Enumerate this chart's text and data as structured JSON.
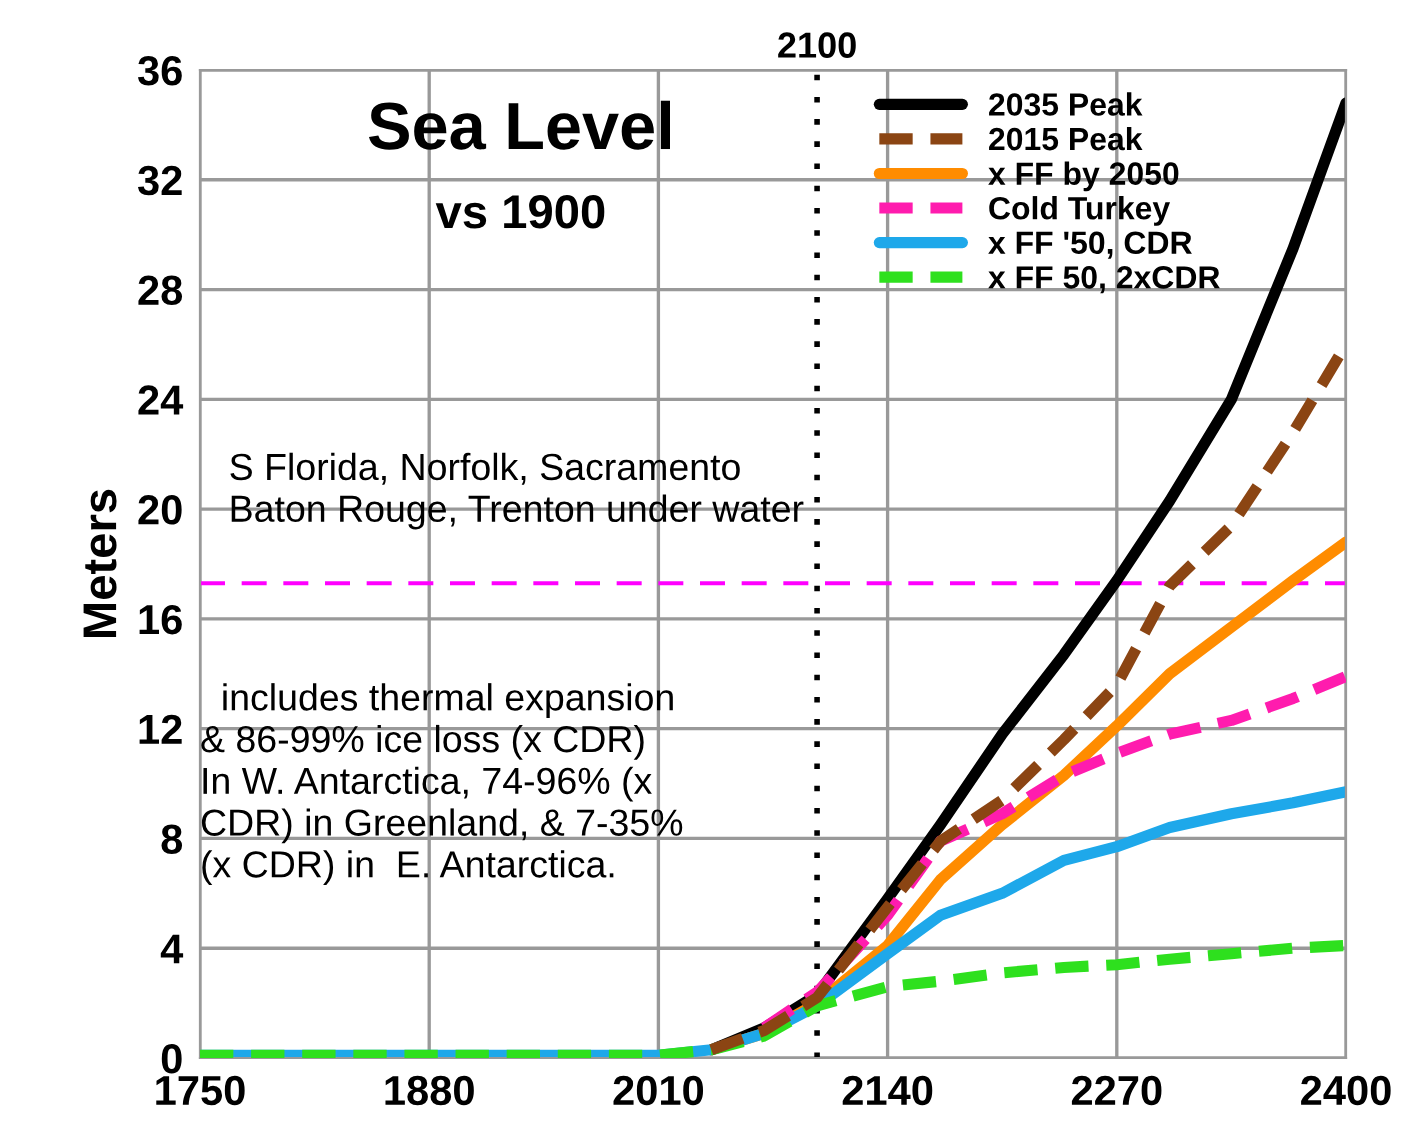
{
  "chart_data": {
    "type": "line",
    "title": "Sea Level",
    "subtitle": "vs 1900",
    "ylabel": "Meters",
    "x": [
      1750,
      1880,
      2010,
      2040,
      2070,
      2100,
      2140,
      2170,
      2205,
      2240,
      2270,
      2300,
      2335,
      2370,
      2400
    ],
    "xlim": [
      1750,
      2400
    ],
    "xticks": [
      1750,
      1880,
      2010,
      2140,
      2270,
      2400
    ],
    "ylim": [
      0,
      36
    ],
    "yticks": [
      0,
      4,
      8,
      12,
      16,
      20,
      24,
      28,
      32,
      36
    ],
    "grid": true,
    "legend": "top right",
    "series": [
      {
        "name": "2035 Peak",
        "color": "#000000",
        "line_style": "solid",
        "values": [
          null,
          null,
          null,
          0.3,
          1.1,
          2.3,
          5.8,
          8.5,
          11.8,
          14.7,
          17.4,
          20.3,
          24.0,
          29.5,
          34.8
        ]
      },
      {
        "name": "2015 Peak",
        "color": "#8b4513",
        "line_style": "dashed",
        "values": [
          null,
          null,
          null,
          0.3,
          1.0,
          2.2,
          5.5,
          7.9,
          9.4,
          11.6,
          13.6,
          17.2,
          19.4,
          22.8,
          26.0
        ]
      },
      {
        "name": "x FF by 2050",
        "color": "#ff8c00",
        "line_style": "solid",
        "values": [
          null,
          null,
          null,
          0.3,
          0.9,
          2.0,
          4.1,
          6.5,
          8.5,
          10.3,
          12.1,
          14.0,
          15.7,
          17.4,
          18.8
        ]
      },
      {
        "name": "Cold Turkey",
        "color": "#ff1cae",
        "line_style": "dashed",
        "values": [
          null,
          null,
          null,
          null,
          1.1,
          2.4,
          5.2,
          7.9,
          8.9,
          10.3,
          11.1,
          11.8,
          12.3,
          13.1,
          13.9
        ]
      },
      {
        "name": "x FF '50, CDR",
        "color": "#1ea8ea",
        "line_style": "solid",
        "values": [
          0.1,
          0.1,
          0.1,
          0.3,
          0.9,
          1.9,
          3.8,
          5.2,
          6.0,
          7.2,
          7.7,
          8.4,
          8.9,
          9.3,
          9.7
        ]
      },
      {
        "name": "x FF 50, 2xCDR",
        "color": "#2ee01e",
        "line_style": "dashed",
        "values": [
          0.1,
          0.1,
          0.1,
          0.3,
          0.8,
          1.9,
          2.6,
          2.8,
          3.1,
          3.3,
          3.4,
          3.6,
          3.8,
          4.0,
          4.1
        ]
      }
    ],
    "ref_lines": [
      {
        "axis": "y",
        "value": 17.3,
        "color": "#ff00ff",
        "line_style": "dashed"
      },
      {
        "axis": "x",
        "value": 2100,
        "label": "2100",
        "color": "#000000",
        "line_style": "dotted"
      }
    ],
    "annotations": [
      "S Florida, Norfolk, Sacramento\nBaton Rouge, Trenton under water",
      "  includes thermal expansion\n& 86-99% ice loss (x CDR)\nIn W. Antarctica, 74-96% (x\nCDR) in Greenland, & 7-35%\n(x CDR) in  E. Antarctica."
    ]
  }
}
